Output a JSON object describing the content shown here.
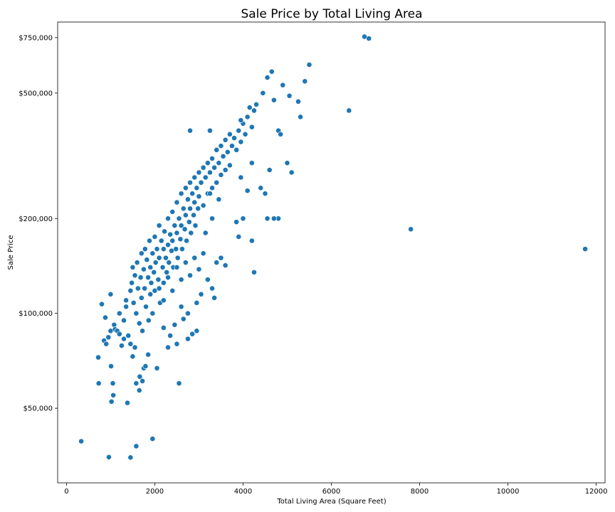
{
  "chart_data": {
    "type": "scatter",
    "title": "Sale Price by Total Living Area",
    "xlabel": "Total Living Area (Square Feet)",
    "ylabel": "Sale Price",
    "xlim": [
      -200,
      12200
    ],
    "ylim": [
      29000,
      840000
    ],
    "yscale": "log",
    "grid": false,
    "marker_color": "#1f77b4",
    "marker_edge_color": "#ffffff",
    "x_ticks": [
      {
        "value": 0,
        "label": "0"
      },
      {
        "value": 2000,
        "label": "2000"
      },
      {
        "value": 4000,
        "label": "4000"
      },
      {
        "value": 6000,
        "label": "6000"
      },
      {
        "value": 8000,
        "label": "8000"
      },
      {
        "value": 10000,
        "label": "10000"
      },
      {
        "value": 12000,
        "label": "12000"
      }
    ],
    "y_ticks": [
      {
        "value": 50000,
        "label": "$50,000"
      },
      {
        "value": 100000,
        "label": "$100,000"
      },
      {
        "value": 200000,
        "label": "$200,000"
      },
      {
        "value": 500000,
        "label": "$500,000"
      },
      {
        "value": 750000,
        "label": "$750,000"
      }
    ],
    "points": [
      [
        334,
        39300
      ],
      [
        960,
        35000
      ],
      [
        1450,
        34900
      ],
      [
        1580,
        37900
      ],
      [
        1950,
        40000
      ],
      [
        720,
        72500
      ],
      [
        730,
        60000
      ],
      [
        800,
        107000
      ],
      [
        850,
        82000
      ],
      [
        880,
        97000
      ],
      [
        900,
        80000
      ],
      [
        950,
        84000
      ],
      [
        1000,
        115000
      ],
      [
        1000,
        88000
      ],
      [
        1010,
        68000
      ],
      [
        1020,
        52500
      ],
      [
        1050,
        60000
      ],
      [
        1060,
        55000
      ],
      [
        1080,
        92000
      ],
      [
        1100,
        89000
      ],
      [
        1150,
        88000
      ],
      [
        1200,
        86000
      ],
      [
        1250,
        79000
      ],
      [
        1300,
        83000
      ],
      [
        1350,
        110000
      ],
      [
        1380,
        52000
      ],
      [
        1400,
        85000
      ],
      [
        1450,
        80000
      ],
      [
        1500,
        73000
      ],
      [
        1550,
        78000
      ],
      [
        1580,
        60000
      ],
      [
        1650,
        57000
      ],
      [
        1660,
        63000
      ],
      [
        1720,
        61000
      ],
      [
        1750,
        67000
      ],
      [
        1790,
        68000
      ],
      [
        1850,
        74000
      ],
      [
        2050,
        67000
      ],
      [
        2550,
        60000
      ],
      [
        1200,
        100000
      ],
      [
        1300,
        95000
      ],
      [
        1350,
        105000
      ],
      [
        1450,
        118000
      ],
      [
        1480,
        125000
      ],
      [
        1500,
        140000
      ],
      [
        1520,
        108000
      ],
      [
        1550,
        132000
      ],
      [
        1580,
        100000
      ],
      [
        1600,
        145000
      ],
      [
        1620,
        120000
      ],
      [
        1650,
        93000
      ],
      [
        1680,
        130000
      ],
      [
        1700,
        155000
      ],
      [
        1700,
        112000
      ],
      [
        1720,
        88000
      ],
      [
        1750,
        138000
      ],
      [
        1770,
        120000
      ],
      [
        1780,
        160000
      ],
      [
        1800,
        105000
      ],
      [
        1820,
        148000
      ],
      [
        1850,
        130000
      ],
      [
        1860,
        95000
      ],
      [
        1880,
        170000
      ],
      [
        1900,
        140000
      ],
      [
        1900,
        115000
      ],
      [
        1920,
        125000
      ],
      [
        1950,
        155000
      ],
      [
        1950,
        100000
      ],
      [
        1980,
        135000
      ],
      [
        2000,
        175000
      ],
      [
        2000,
        118000
      ],
      [
        2020,
        145000
      ],
      [
        2050,
        160000
      ],
      [
        2080,
        128000
      ],
      [
        2100,
        190000
      ],
      [
        2100,
        150000
      ],
      [
        2120,
        108000
      ],
      [
        2150,
        170000
      ],
      [
        2180,
        140000
      ],
      [
        2200,
        160000
      ],
      [
        2200,
        125000
      ],
      [
        2220,
        182000
      ],
      [
        2250,
        150000
      ],
      [
        2270,
        135000
      ],
      [
        2300,
        200000
      ],
      [
        2300,
        165000
      ],
      [
        2320,
        145000
      ],
      [
        2350,
        178000
      ],
      [
        2380,
        158000
      ],
      [
        2400,
        210000
      ],
      [
        2400,
        170000
      ],
      [
        2420,
        140000
      ],
      [
        2450,
        190000
      ],
      [
        2480,
        160000
      ],
      [
        2500,
        225000
      ],
      [
        2500,
        180000
      ],
      [
        2520,
        150000
      ],
      [
        2550,
        200000
      ],
      [
        2580,
        172000
      ],
      [
        2600,
        240000
      ],
      [
        2600,
        190000
      ],
      [
        2620,
        160000
      ],
      [
        2650,
        215000
      ],
      [
        2680,
        185000
      ],
      [
        2700,
        250000
      ],
      [
        2700,
        205000
      ],
      [
        2720,
        170000
      ],
      [
        2750,
        230000
      ],
      [
        2780,
        195000
      ],
      [
        2800,
        260000
      ],
      [
        2800,
        215000
      ],
      [
        2820,
        180000
      ],
      [
        2850,
        240000
      ],
      [
        2880,
        205000
      ],
      [
        2900,
        270000
      ],
      [
        2900,
        225000
      ],
      [
        2920,
        190000
      ],
      [
        2950,
        250000
      ],
      [
        2980,
        215000
      ],
      [
        3000,
        280000
      ],
      [
        3000,
        235000
      ],
      [
        3050,
        260000
      ],
      [
        3100,
        290000
      ],
      [
        3100,
        220000
      ],
      [
        3150,
        270000
      ],
      [
        3200,
        300000
      ],
      [
        3200,
        240000
      ],
      [
        3250,
        280000
      ],
      [
        3300,
        310000
      ],
      [
        3300,
        250000
      ],
      [
        3350,
        290000
      ],
      [
        3400,
        330000
      ],
      [
        3400,
        260000
      ],
      [
        3450,
        300000
      ],
      [
        3500,
        340000
      ],
      [
        3500,
        275000
      ],
      [
        3550,
        315000
      ],
      [
        3600,
        355000
      ],
      [
        3600,
        285000
      ],
      [
        3650,
        325000
      ],
      [
        3700,
        370000
      ],
      [
        3700,
        295000
      ],
      [
        3750,
        340000
      ],
      [
        3800,
        360000
      ],
      [
        3850,
        330000
      ],
      [
        3900,
        380000
      ],
      [
        3950,
        350000
      ],
      [
        4000,
        400000
      ],
      [
        4050,
        370000
      ],
      [
        4100,
        420000
      ],
      [
        4150,
        450000
      ],
      [
        4200,
        390000
      ],
      [
        4250,
        440000
      ],
      [
        4300,
        460000
      ],
      [
        2100,
        120000
      ],
      [
        2200,
        110000
      ],
      [
        2300,
        130000
      ],
      [
        2400,
        118000
      ],
      [
        2500,
        140000
      ],
      [
        2600,
        128000
      ],
      [
        2700,
        145000
      ],
      [
        2800,
        132000
      ],
      [
        2900,
        150000
      ],
      [
        3000,
        138000
      ],
      [
        3100,
        155000
      ],
      [
        3200,
        128000
      ],
      [
        3300,
        120000
      ],
      [
        3350,
        112000
      ],
      [
        3400,
        145000
      ],
      [
        3500,
        150000
      ],
      [
        3600,
        142000
      ],
      [
        2950,
        108000
      ],
      [
        3050,
        115000
      ],
      [
        2750,
        100000
      ],
      [
        2650,
        96000
      ],
      [
        2450,
        92000
      ],
      [
        2200,
        90000
      ],
      [
        2350,
        85000
      ],
      [
        2600,
        105000
      ],
      [
        2750,
        83000
      ],
      [
        2850,
        86000
      ],
      [
        2950,
        88000
      ],
      [
        2500,
        80000
      ],
      [
        2300,
        78000
      ],
      [
        4500,
        240000
      ],
      [
        4600,
        285000
      ],
      [
        4400,
        250000
      ],
      [
        4800,
        200000
      ],
      [
        4700,
        200000
      ],
      [
        4800,
        380000
      ],
      [
        4700,
        475000
      ],
      [
        4550,
        560000
      ],
      [
        4650,
        585000
      ],
      [
        4450,
        500000
      ],
      [
        4900,
        530000
      ],
      [
        5050,
        490000
      ],
      [
        5000,
        300000
      ],
      [
        5100,
        280000
      ],
      [
        4850,
        370000
      ],
      [
        5250,
        470000
      ],
      [
        5300,
        420000
      ],
      [
        5400,
        545000
      ],
      [
        5500,
        615000
      ],
      [
        6400,
        440000
      ],
      [
        6750,
        755000
      ],
      [
        6850,
        745000
      ],
      [
        7800,
        185000
      ],
      [
        11750,
        160000
      ],
      [
        4250,
        135000
      ],
      [
        4200,
        300000
      ],
      [
        4100,
        245000
      ],
      [
        3950,
        270000
      ],
      [
        4000,
        200000
      ],
      [
        3850,
        195000
      ],
      [
        3300,
        200000
      ],
      [
        3450,
        230000
      ],
      [
        3150,
        180000
      ],
      [
        3250,
        240000
      ],
      [
        2800,
        380000
      ],
      [
        3250,
        380000
      ],
      [
        4550,
        200000
      ],
      [
        4200,
        170000
      ],
      [
        3900,
        175000
      ],
      [
        3950,
        410000
      ]
    ]
  }
}
